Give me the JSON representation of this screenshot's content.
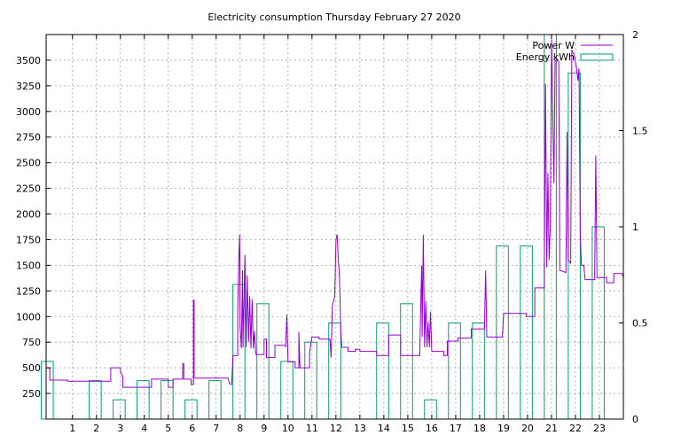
{
  "chart_data": {
    "type": "line",
    "title": "Electricity consumption Thursday February 27 2020",
    "xlim": [
      -0.1,
      24.0
    ],
    "ylim": [
      0,
      3750
    ],
    "y2lim": [
      0,
      2
    ],
    "grid": true,
    "legend_position": "top-right",
    "x_ticks": [
      1,
      2,
      3,
      4,
      5,
      6,
      7,
      8,
      9,
      10,
      11,
      12,
      13,
      14,
      15,
      16,
      17,
      18,
      19,
      20,
      21,
      22,
      23
    ],
    "y_ticks": [
      250,
      500,
      750,
      1000,
      1250,
      1500,
      1750,
      2000,
      2250,
      2500,
      2750,
      3000,
      3250,
      3500
    ],
    "y2_ticks": [
      0,
      0.5,
      1,
      1.5,
      2
    ],
    "y2_tick_labels": [
      "0",
      "0.5",
      "1",
      "1.5",
      "2"
    ],
    "series": [
      {
        "name": "Power W",
        "type": "line",
        "color": "#9400d3",
        "axis": "y",
        "points": [
          [
            -0.1,
            500
          ],
          [
            0.05,
            500
          ],
          [
            0.05,
            380
          ],
          [
            0.8,
            380
          ],
          [
            0.8,
            370
          ],
          [
            1.5,
            370
          ],
          [
            2.6,
            370
          ],
          [
            2.6,
            500
          ],
          [
            3.0,
            500
          ],
          [
            3.0,
            460
          ],
          [
            3.05,
            440
          ],
          [
            3.1,
            420
          ],
          [
            3.1,
            310
          ],
          [
            4.0,
            310
          ],
          [
            4.3,
            310
          ],
          [
            4.3,
            390
          ],
          [
            4.8,
            390
          ],
          [
            4.8,
            390
          ],
          [
            5.0,
            390
          ],
          [
            5.0,
            310
          ],
          [
            5.2,
            310
          ],
          [
            5.2,
            390
          ],
          [
            5.6,
            390
          ],
          [
            5.6,
            540
          ],
          [
            5.65,
            540
          ],
          [
            5.65,
            390
          ],
          [
            5.95,
            390
          ],
          [
            5.95,
            340
          ],
          [
            6.05,
            340
          ],
          [
            6.05,
            1160
          ],
          [
            6.08,
            1160
          ],
          [
            6.08,
            400
          ],
          [
            7.5,
            400
          ],
          [
            7.55,
            350
          ],
          [
            7.6,
            340
          ],
          [
            7.65,
            340
          ],
          [
            7.7,
            620
          ],
          [
            7.9,
            620
          ],
          [
            7.9,
            1060
          ],
          [
            7.95,
            1630
          ],
          [
            7.98,
            1800
          ],
          [
            8.0,
            900
          ],
          [
            8.05,
            690
          ],
          [
            8.1,
            1450
          ],
          [
            8.12,
            700
          ],
          [
            8.2,
            1600
          ],
          [
            8.25,
            700
          ],
          [
            8.3,
            1400
          ],
          [
            8.35,
            750
          ],
          [
            8.4,
            1200
          ],
          [
            8.45,
            690
          ],
          [
            8.5,
            1170
          ],
          [
            8.55,
            690
          ],
          [
            8.6,
            860
          ],
          [
            8.65,
            630
          ],
          [
            9.0,
            630
          ],
          [
            9.0,
            780
          ],
          [
            9.1,
            780
          ],
          [
            9.1,
            600
          ],
          [
            9.45,
            600
          ],
          [
            9.45,
            720
          ],
          [
            9.9,
            720
          ],
          [
            9.9,
            700
          ],
          [
            9.95,
            1020
          ],
          [
            10.0,
            560
          ],
          [
            10.3,
            560
          ],
          [
            10.3,
            500
          ],
          [
            10.45,
            500
          ],
          [
            10.45,
            850
          ],
          [
            10.5,
            500
          ],
          [
            10.9,
            500
          ],
          [
            10.9,
            650
          ],
          [
            11.0,
            800
          ],
          [
            11.3,
            800
          ],
          [
            11.3,
            780
          ],
          [
            11.75,
            780
          ],
          [
            11.8,
            600
          ],
          [
            11.85,
            1100
          ],
          [
            11.95,
            1200
          ],
          [
            12.0,
            1750
          ],
          [
            12.05,
            1800
          ],
          [
            12.1,
            1550
          ],
          [
            12.15,
            1380
          ],
          [
            12.2,
            850
          ],
          [
            12.25,
            700
          ],
          [
            12.5,
            700
          ],
          [
            12.5,
            660
          ],
          [
            12.8,
            660
          ],
          [
            12.8,
            680
          ],
          [
            13.0,
            680
          ],
          [
            13.0,
            660
          ],
          [
            13.7,
            660
          ],
          [
            13.7,
            620
          ],
          [
            14.2,
            620
          ],
          [
            14.2,
            820
          ],
          [
            14.7,
            820
          ],
          [
            14.7,
            620
          ],
          [
            15.5,
            620
          ],
          [
            15.55,
            1200
          ],
          [
            15.58,
            1500
          ],
          [
            15.6,
            800
          ],
          [
            15.65,
            1800
          ],
          [
            15.7,
            700
          ],
          [
            15.75,
            1150
          ],
          [
            15.8,
            700
          ],
          [
            15.85,
            950
          ],
          [
            15.9,
            700
          ],
          [
            15.95,
            1050
          ],
          [
            16.0,
            660
          ],
          [
            16.5,
            660
          ],
          [
            16.5,
            620
          ],
          [
            16.65,
            620
          ],
          [
            16.65,
            760
          ],
          [
            17.1,
            760
          ],
          [
            17.1,
            790
          ],
          [
            17.65,
            790
          ],
          [
            17.65,
            880
          ],
          [
            18.2,
            880
          ],
          [
            18.25,
            1450
          ],
          [
            18.3,
            800
          ],
          [
            18.95,
            800
          ],
          [
            19.0,
            1030
          ],
          [
            19.95,
            1030
          ],
          [
            19.95,
            1000
          ],
          [
            20.3,
            1000
          ],
          [
            20.3,
            1280
          ],
          [
            20.7,
            1280
          ],
          [
            20.7,
            1500
          ],
          [
            20.75,
            3270
          ],
          [
            20.8,
            1480
          ],
          [
            20.85,
            2400
          ],
          [
            20.9,
            1550
          ],
          [
            20.95,
            1900
          ],
          [
            21.0,
            3700
          ],
          [
            21.1,
            2300
          ],
          [
            21.15,
            3500
          ],
          [
            21.3,
            3490
          ],
          [
            21.35,
            1450
          ],
          [
            21.6,
            1430
          ],
          [
            21.65,
            2800
          ],
          [
            21.7,
            1550
          ],
          [
            21.8,
            1520
          ],
          [
            21.85,
            3600
          ],
          [
            21.95,
            3550
          ],
          [
            22.05,
            3420
          ],
          [
            22.1,
            3300
          ],
          [
            22.15,
            3420
          ],
          [
            22.2,
            1800
          ],
          [
            22.25,
            1500
          ],
          [
            22.35,
            1500
          ],
          [
            22.4,
            1360
          ],
          [
            22.8,
            1360
          ],
          [
            22.85,
            2570
          ],
          [
            22.9,
            1380
          ],
          [
            23.3,
            1380
          ],
          [
            23.3,
            1330
          ],
          [
            23.6,
            1330
          ],
          [
            23.6,
            1420
          ],
          [
            23.95,
            1420
          ],
          [
            24.0,
            1380
          ]
        ]
      },
      {
        "name": "Energy kWh",
        "type": "bar",
        "color": "#009e73",
        "axis": "y2",
        "categories": [
          0,
          1,
          2,
          3,
          4,
          5,
          6,
          7,
          8,
          9,
          10,
          11,
          12,
          13,
          14,
          15,
          16,
          17,
          18,
          19,
          20,
          21,
          22,
          23
        ],
        "values": [
          0.3,
          0,
          0.2,
          0.1,
          0.2,
          0.2,
          0.1,
          0.2,
          0.7,
          0.6,
          0.3,
          0.4,
          0.5,
          0,
          0.5,
          0.6,
          0.1,
          0.5,
          0.5,
          0.9,
          0.9,
          2.0,
          1.8,
          1.0
        ]
      }
    ]
  }
}
